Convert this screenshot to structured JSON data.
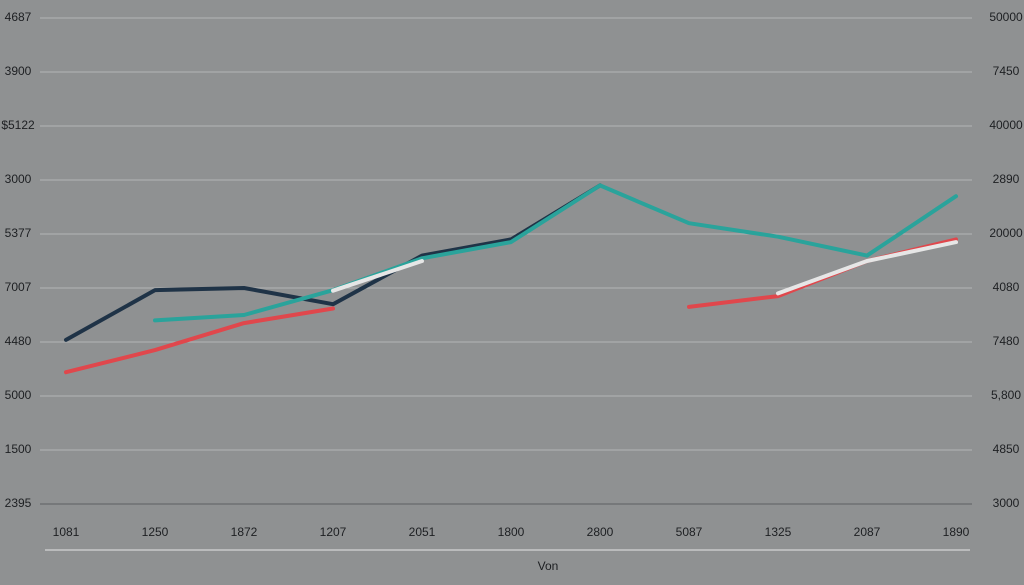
{
  "chart_data": {
    "type": "line",
    "x_label": "Von",
    "categories": [
      "1081",
      "1250",
      "1872",
      "1207",
      "2051",
      "1800",
      "2800",
      "5087",
      "1325",
      "2087",
      "1890"
    ],
    "ylim": [
      0,
      9
    ],
    "yticks": [
      {
        "value": 9,
        "label": "4687"
      },
      {
        "value": 8,
        "label": "3900"
      },
      {
        "value": 7,
        "label": "$5122"
      },
      {
        "value": 6,
        "label": "3000"
      },
      {
        "value": 5,
        "label": "5377"
      },
      {
        "value": 4,
        "label": "7007"
      },
      {
        "value": 3,
        "label": "4480"
      },
      {
        "value": 2,
        "label": "5000"
      },
      {
        "value": 1,
        "label": "1500"
      },
      {
        "value": 0,
        "label": "2395"
      }
    ],
    "y2lim": [
      0,
      9
    ],
    "y2ticks": [
      {
        "value": 9,
        "label": "50000"
      },
      {
        "value": 8,
        "label": "7450"
      },
      {
        "value": 7,
        "label": "40000"
      },
      {
        "value": 6,
        "label": "2890"
      },
      {
        "value": 5,
        "label": "20000"
      },
      {
        "value": 4,
        "label": "4080"
      },
      {
        "value": 3,
        "label": "7480"
      },
      {
        "value": 2,
        "label": "5,800"
      },
      {
        "value": 1,
        "label": "4850"
      },
      {
        "value": 0,
        "label": "3000"
      }
    ],
    "grid": true,
    "series": [
      {
        "color": "#1f3347",
        "values": [
          3.04,
          3.96,
          4.0,
          3.7,
          4.6,
          4.9,
          5.9,
          null,
          null,
          null,
          null
        ]
      },
      {
        "color": "#2aa39b",
        "values": [
          null,
          3.4,
          3.5,
          3.96,
          4.55,
          4.85,
          5.9,
          5.2,
          4.95,
          4.6,
          5.7
        ]
      },
      {
        "color": "#e0474c",
        "values": [
          2.44,
          2.85,
          3.35,
          3.62,
          null,
          null,
          null,
          3.65,
          3.85,
          4.5,
          4.9
        ]
      },
      {
        "color": "#e6e6e6",
        "values": [
          null,
          null,
          null,
          3.95,
          4.5,
          null,
          null,
          null,
          3.9,
          4.5,
          4.85
        ]
      }
    ]
  }
}
